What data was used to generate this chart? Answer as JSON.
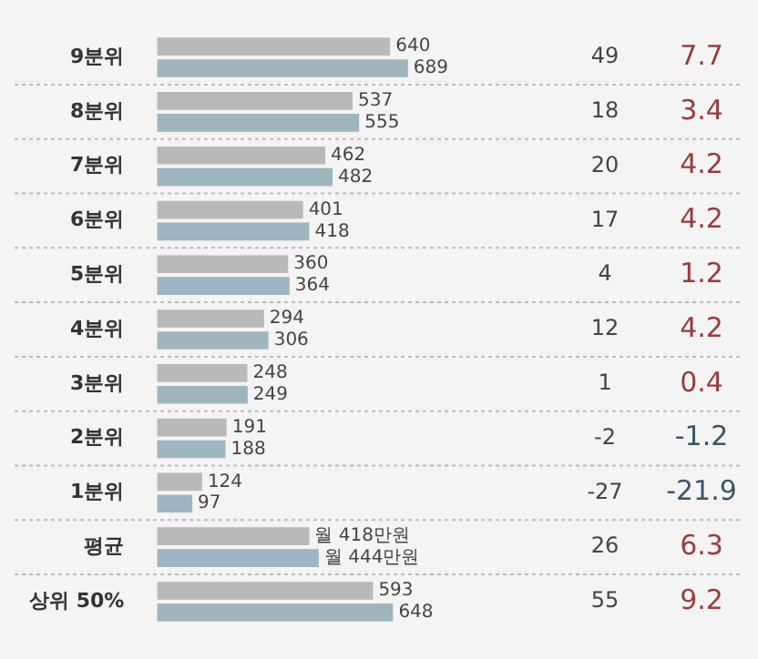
{
  "chart_data": {
    "type": "bar",
    "orientation": "horizontal",
    "categories": [
      "9분위",
      "8분위",
      "7분위",
      "6분위",
      "5분위",
      "4분위",
      "3분위",
      "2분위",
      "1분위",
      "평균",
      "상위 50%"
    ],
    "series": [
      {
        "color": "#b9b9b9",
        "values": [
          640,
          537,
          462,
          401,
          360,
          294,
          248,
          191,
          124,
          418,
          593
        ],
        "value_labels": [
          "640",
          "537",
          "462",
          "401",
          "360",
          "294",
          "248",
          "191",
          "124",
          "월 418만원",
          "593"
        ]
      },
      {
        "color": "#9fb5bf",
        "values": [
          689,
          555,
          482,
          418,
          364,
          306,
          249,
          188,
          97,
          444,
          648
        ],
        "value_labels": [
          "689",
          "555",
          "482",
          "418",
          "364",
          "306",
          "249",
          "188",
          "97",
          "월 444만원",
          "648"
        ]
      }
    ],
    "xlim": [
      0,
      1600
    ],
    "tick_labels": "y",
    "annotations": [
      "49",
      "7.7",
      "18",
      "3.4",
      "20",
      "4.2",
      "17",
      "4.2",
      "4",
      "1.2",
      "12",
      "4.2",
      "1",
      "0.4",
      "-2",
      "-1.2",
      "-27",
      "-21.9",
      "26",
      "6.3",
      "55",
      "9.2"
    ]
  }
}
